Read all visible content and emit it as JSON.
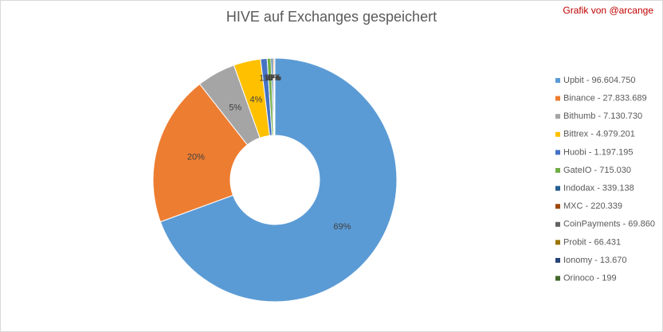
{
  "chart_data": {
    "type": "pie",
    "title": "HIVE auf Exchanges gespeichert",
    "credit": "Grafik von @arcange",
    "categories": [
      "Upbit - 96.604.750",
      "Binance - 27.833.689",
      "Bithumb - 7.130.730",
      "Bittrex - 4.979.201",
      "Huobi - 1.197.195",
      "GateIO - 715.030",
      "Indodax - 339.138",
      "MXC - 220.339",
      "CoinPayments - 69.860",
      "Probit - 66.431",
      "Ionomy - 13.670",
      "Orinoco - 199"
    ],
    "values": [
      96604750,
      27833689,
      7130730,
      4979201,
      1197195,
      715030,
      339138,
      220339,
      69860,
      66431,
      13670,
      199
    ],
    "value_labels": [
      "69%",
      "20%",
      "5%",
      "4%",
      "1%",
      "1%",
      "0%",
      "0%",
      "0%",
      "0%",
      "0%",
      "0%"
    ],
    "colors": [
      "#5b9bd5",
      "#ed7d31",
      "#a5a5a5",
      "#ffc000",
      "#4472c4",
      "#70ad47",
      "#255e91",
      "#9e480e",
      "#636363",
      "#997300",
      "#264478",
      "#43682b"
    ],
    "legend": "right"
  }
}
